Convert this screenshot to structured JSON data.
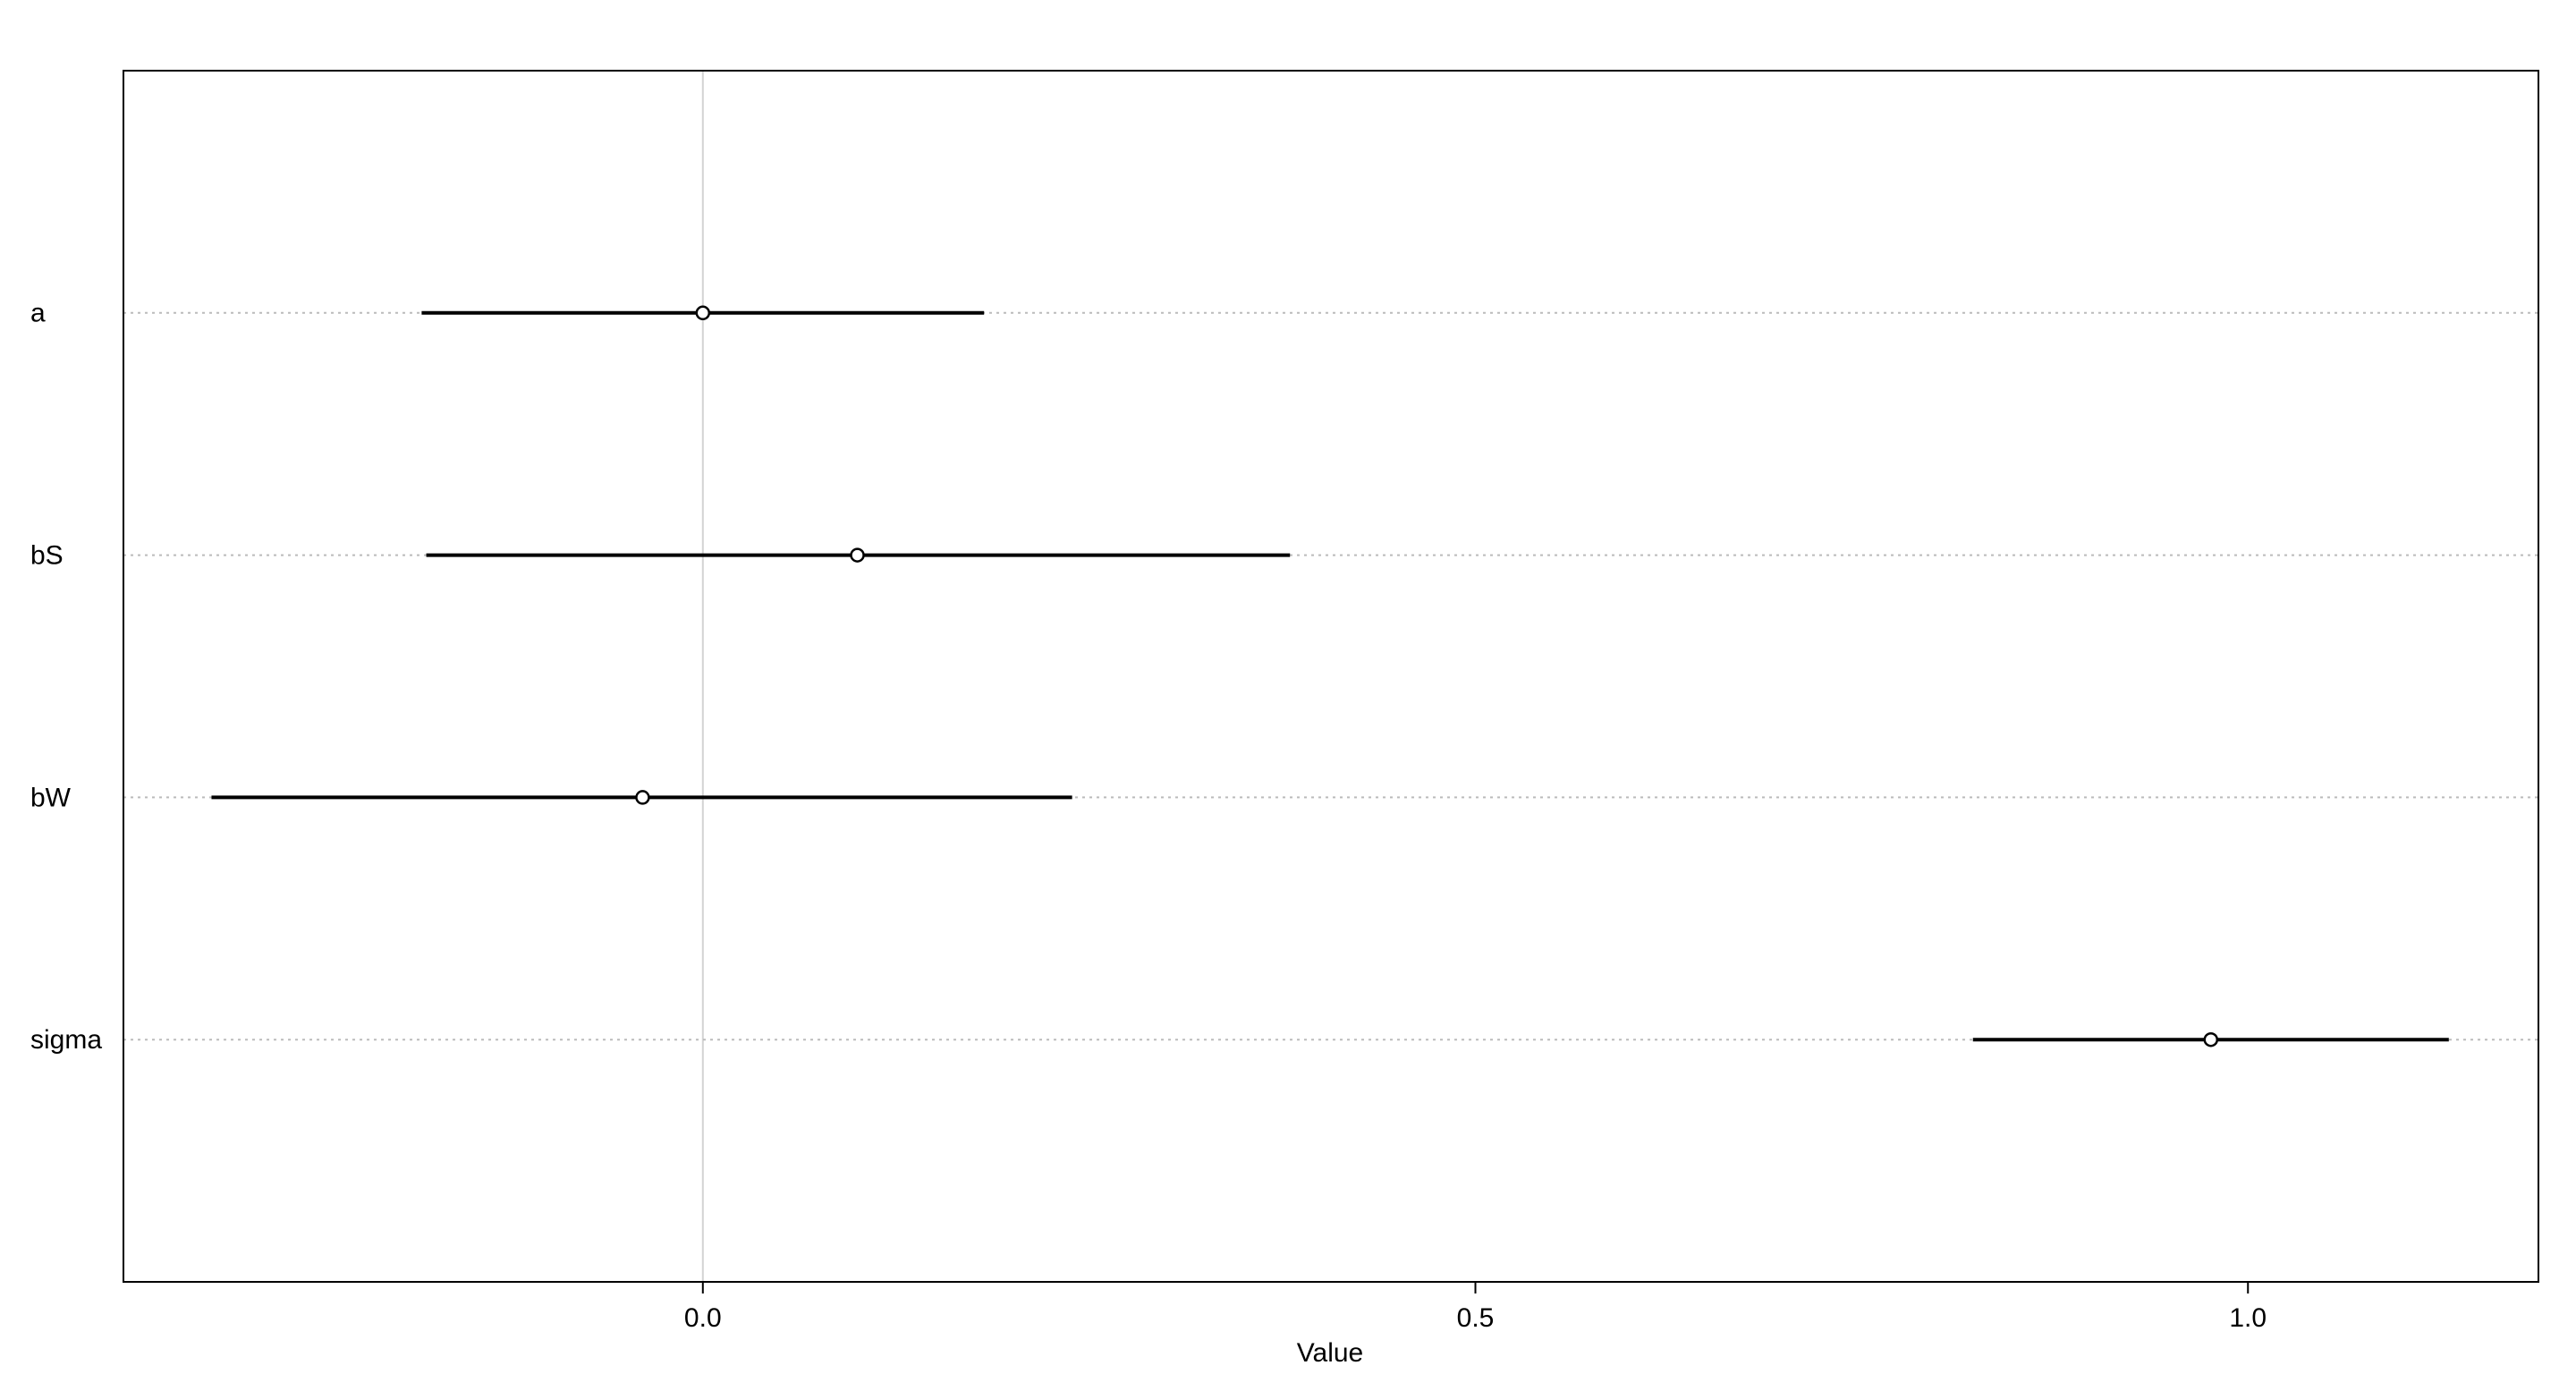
{
  "chart_data": {
    "type": "interval",
    "categories": [
      "a",
      "bS",
      "bW",
      "sigma"
    ],
    "mean": [
      0.0,
      0.1,
      -0.039,
      0.976
    ],
    "lower": [
      -0.182,
      -0.179,
      -0.318,
      0.822
    ],
    "upper": [
      0.182,
      0.38,
      0.239,
      1.13
    ],
    "color": "#000000",
    "xlabel": "Value",
    "xlim": [
      -0.375,
      1.188
    ],
    "xticks": [
      {
        "value": 0,
        "label": "0.0"
      },
      0.5,
      {
        "value": 1,
        "label": "1.0"
      }
    ],
    "reference_line": 0,
    "grid": true
  }
}
